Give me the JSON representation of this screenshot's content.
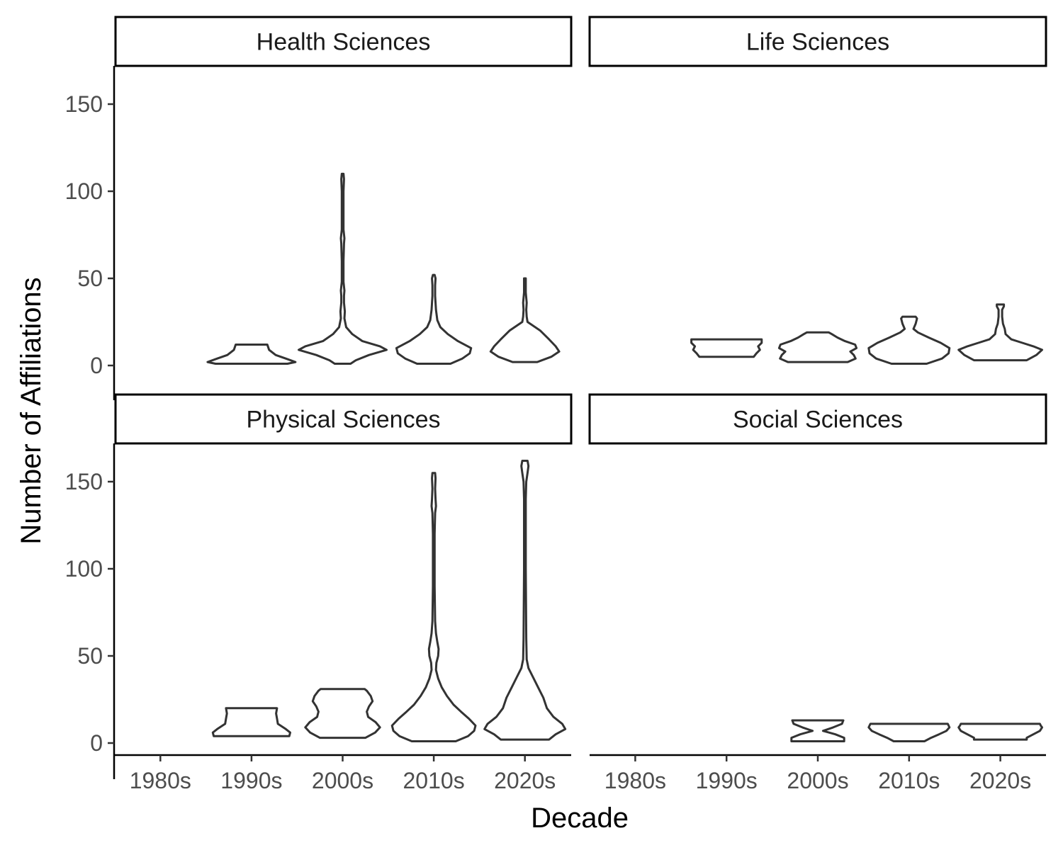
{
  "chart_data": {
    "type": "violin",
    "xlabel": "Decade",
    "ylabel": "Number of Affiliations",
    "categories": [
      "1980s",
      "1990s",
      "2000s",
      "2010s",
      "2020s"
    ],
    "yticks": [
      0,
      50,
      100,
      150
    ],
    "ylim": [
      -8,
      170
    ],
    "grid": false,
    "panels": [
      {
        "label": "Health Sciences",
        "violins": [
          {
            "category": "1990s",
            "profile": [
              [
                1,
                0.82
              ],
              [
                2,
                1
              ],
              [
                4,
                0.78
              ],
              [
                6,
                0.55
              ],
              [
                9,
                0.4
              ],
              [
                12,
                0.36
              ]
            ]
          },
          {
            "category": "2000s",
            "profile": [
              [
                1,
                0.18
              ],
              [
                3,
                0.3
              ],
              [
                6,
                0.6
              ],
              [
                9,
                1
              ],
              [
                11,
                0.85
              ],
              [
                14,
                0.45
              ],
              [
                18,
                0.22
              ],
              [
                22,
                0.08
              ],
              [
                27,
                0.04
              ],
              [
                31,
                0.05
              ],
              [
                36,
                0.03
              ],
              [
                40,
                0.03
              ],
              [
                43,
                0.04
              ],
              [
                48,
                0.02
              ],
              [
                60,
                0.02
              ],
              [
                70,
                0.03
              ],
              [
                73,
                0.04
              ],
              [
                78,
                0.02
              ],
              [
                100,
                0.02
              ],
              [
                107,
                0.03
              ],
              [
                110,
                0.02
              ]
            ]
          },
          {
            "category": "2010s",
            "profile": [
              [
                1,
                0.38
              ],
              [
                4,
                0.65
              ],
              [
                7,
                0.82
              ],
              [
                10,
                0.85
              ],
              [
                14,
                0.55
              ],
              [
                18,
                0.32
              ],
              [
                22,
                0.15
              ],
              [
                26,
                0.08
              ],
              [
                32,
                0.05
              ],
              [
                40,
                0.03
              ],
              [
                46,
                0.03
              ],
              [
                50,
                0.04
              ],
              [
                52,
                0.02
              ]
            ]
          },
          {
            "category": "2020s",
            "profile": [
              [
                2,
                0.28
              ],
              [
                5,
                0.6
              ],
              [
                8,
                0.78
              ],
              [
                11,
                0.7
              ],
              [
                15,
                0.55
              ],
              [
                20,
                0.35
              ],
              [
                25,
                0.06
              ],
              [
                28,
                0.04
              ],
              [
                32,
                0.03
              ],
              [
                36,
                0.04
              ],
              [
                42,
                0.02
              ],
              [
                50,
                0.02
              ]
            ]
          }
        ]
      },
      {
        "label": "Life Sciences",
        "violins": [
          {
            "category": "1990s",
            "profile": [
              [
                5,
                0.62
              ],
              [
                7,
                0.68
              ],
              [
                9,
                0.76
              ],
              [
                11,
                0.72
              ],
              [
                13,
                0.8
              ],
              [
                15,
                0.8
              ]
            ]
          },
          {
            "category": "2000s",
            "profile": [
              [
                2,
                0.68
              ],
              [
                4,
                0.86
              ],
              [
                6,
                0.82
              ],
              [
                8,
                0.74
              ],
              [
                10,
                0.88
              ],
              [
                12,
                0.85
              ],
              [
                14,
                0.62
              ],
              [
                16,
                0.45
              ],
              [
                18,
                0.32
              ],
              [
                19,
                0.25
              ]
            ]
          },
          {
            "category": "2010s",
            "profile": [
              [
                1,
                0.4
              ],
              [
                4,
                0.75
              ],
              [
                7,
                0.9
              ],
              [
                10,
                0.92
              ],
              [
                13,
                0.72
              ],
              [
                16,
                0.45
              ],
              [
                19,
                0.2
              ],
              [
                21,
                0.1
              ],
              [
                24,
                0.15
              ],
              [
                27,
                0.18
              ],
              [
                28,
                0.15
              ]
            ]
          },
          {
            "category": "2020s",
            "profile": [
              [
                3,
                0.6
              ],
              [
                6,
                0.82
              ],
              [
                9,
                0.95
              ],
              [
                11,
                0.75
              ],
              [
                13,
                0.5
              ],
              [
                15,
                0.25
              ],
              [
                18,
                0.12
              ],
              [
                21,
                0.1
              ],
              [
                24,
                0.06
              ],
              [
                28,
                0.04
              ],
              [
                32,
                0.04
              ],
              [
                34,
                0.08
              ],
              [
                35,
                0.08
              ]
            ]
          }
        ]
      },
      {
        "label": "Physical Sciences",
        "violins": [
          {
            "category": "1990s",
            "profile": [
              [
                4,
                0.86
              ],
              [
                6,
                0.88
              ],
              [
                8,
                0.78
              ],
              [
                11,
                0.6
              ],
              [
                14,
                0.58
              ],
              [
                17,
                0.56
              ],
              [
                20,
                0.58
              ]
            ]
          },
          {
            "category": "2000s",
            "profile": [
              [
                3,
                0.52
              ],
              [
                6,
                0.74
              ],
              [
                9,
                0.85
              ],
              [
                12,
                0.75
              ],
              [
                15,
                0.58
              ],
              [
                18,
                0.55
              ],
              [
                21,
                0.6
              ],
              [
                24,
                0.68
              ],
              [
                27,
                0.64
              ],
              [
                30,
                0.55
              ],
              [
                31,
                0.5
              ]
            ]
          },
          {
            "category": "2010s",
            "profile": [
              [
                1,
                0.5
              ],
              [
                4,
                0.78
              ],
              [
                7,
                0.92
              ],
              [
                10,
                0.95
              ],
              [
                14,
                0.8
              ],
              [
                18,
                0.62
              ],
              [
                22,
                0.45
              ],
              [
                27,
                0.3
              ],
              [
                32,
                0.18
              ],
              [
                37,
                0.1
              ],
              [
                42,
                0.05
              ],
              [
                46,
                0.06
              ],
              [
                50,
                0.1
              ],
              [
                54,
                0.11
              ],
              [
                58,
                0.08
              ],
              [
                63,
                0.05
              ],
              [
                70,
                0.03
              ],
              [
                90,
                0.02
              ],
              [
                120,
                0.02
              ],
              [
                132,
                0.03
              ],
              [
                136,
                0.05
              ],
              [
                140,
                0.04
              ],
              [
                146,
                0.03
              ],
              [
                152,
                0.04
              ],
              [
                155,
                0.03
              ]
            ]
          },
          {
            "category": "2020s",
            "profile": [
              [
                2,
                0.55
              ],
              [
                5,
                0.7
              ],
              [
                8,
                0.92
              ],
              [
                11,
                0.85
              ],
              [
                15,
                0.65
              ],
              [
                20,
                0.5
              ],
              [
                26,
                0.42
              ],
              [
                32,
                0.3
              ],
              [
                38,
                0.18
              ],
              [
                43,
                0.08
              ],
              [
                48,
                0.04
              ],
              [
                60,
                0.03
              ],
              [
                100,
                0.02
              ],
              [
                140,
                0.02
              ],
              [
                150,
                0.03
              ],
              [
                155,
                0.06
              ],
              [
                159,
                0.08
              ],
              [
                162,
                0.06
              ]
            ]
          }
        ]
      },
      {
        "label": "Social Sciences",
        "violins": [
          {
            "category": "2000s",
            "profile": [
              [
                1,
                0.6
              ],
              [
                3,
                0.6
              ],
              [
                5,
                0.4
              ],
              [
                7,
                0.12
              ],
              [
                9,
                0.35
              ],
              [
                11,
                0.55
              ],
              [
                13,
                0.58
              ]
            ]
          },
          {
            "category": "2010s",
            "profile": [
              [
                1,
                0.35
              ],
              [
                3,
                0.5
              ],
              [
                5,
                0.68
              ],
              [
                7,
                0.85
              ],
              [
                9,
                0.92
              ],
              [
                10,
                0.9
              ],
              [
                11,
                0.88
              ]
            ]
          },
          {
            "category": "2020s",
            "profile": [
              [
                2,
                0.6
              ],
              [
                3,
                0.6
              ],
              [
                5,
                0.75
              ],
              [
                7,
                0.9
              ],
              [
                9,
                0.95
              ],
              [
                10,
                0.92
              ],
              [
                11,
                0.9
              ]
            ]
          }
        ]
      }
    ]
  }
}
